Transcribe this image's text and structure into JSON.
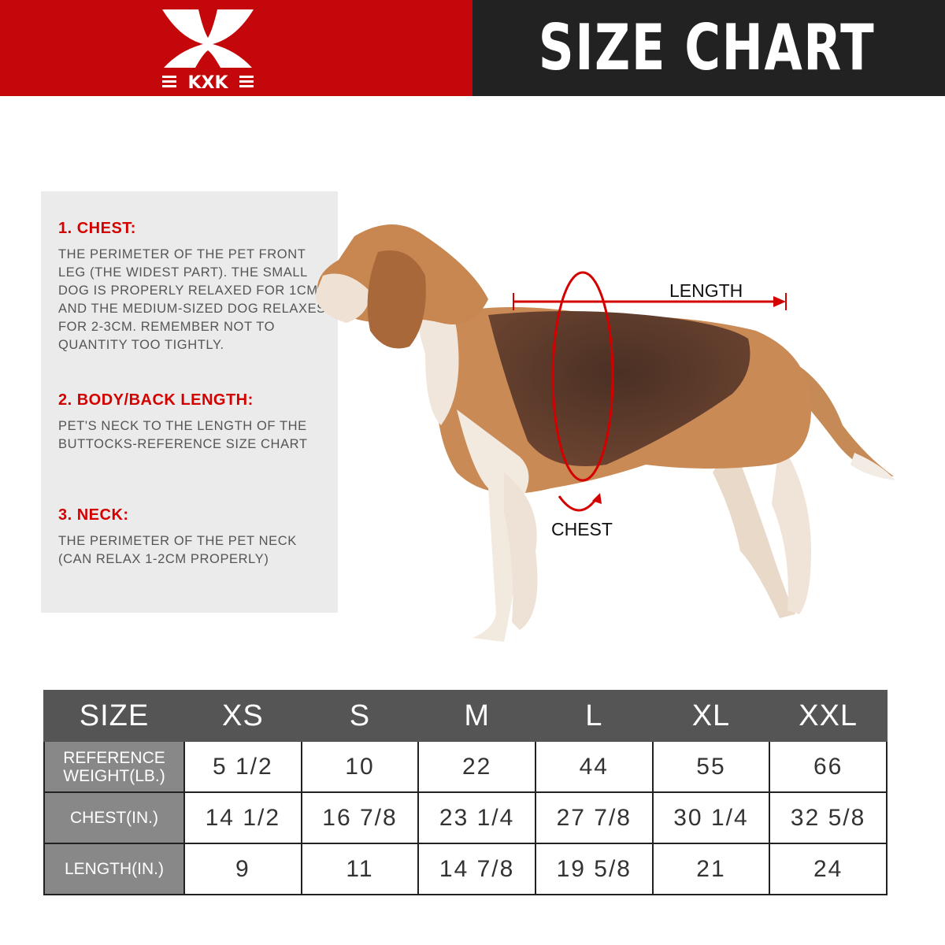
{
  "brand": {
    "logo_text": "KXK",
    "color": "#c4070a"
  },
  "header": {
    "title": "SIZE CHART"
  },
  "guide": [
    {
      "heading": "1. CHEST:",
      "text": "THE PERIMETER OF THE PET FRONT LEG (THE WIDEST PART). THE SMALL DOG IS PROPERLY RELAXED FOR 1CM, AND THE MEDIUM-SIZED DOG RELAXES FOR 2-3CM. REMEMBER NOT TO QUANTITY TOO TIGHTLY."
    },
    {
      "heading": "2. BODY/BACK LENGTH:",
      "text": "PET'S NECK TO THE LENGTH OF THE BUTTOCKS-REFERENCE SIZE CHART"
    },
    {
      "heading": "3. NECK:",
      "text": "THE PERIMETER OF THE PET NECK\n (CAN RELAX 1-2CM PROPERLY)"
    }
  ],
  "diagram": {
    "length_label": "LENGTH",
    "chest_label": "CHEST",
    "accent": "#d40000"
  },
  "table": {
    "header": [
      "SIZE",
      "XS",
      "S",
      "M",
      "L",
      "XL",
      "XXL"
    ],
    "rows": [
      {
        "label": "REFERENCE WEIGHT(LB.)",
        "values": [
          "5 1/2",
          "10",
          "22",
          "44",
          "55",
          "66"
        ]
      },
      {
        "label": "CHEST(IN.)",
        "values": [
          "14 1/2",
          "16 7/8",
          "23 1/4",
          "27 7/8",
          "30 1/4",
          "32 5/8"
        ]
      },
      {
        "label": "LENGTH(IN.)",
        "values": [
          "9",
          "11",
          "14 7/8",
          "19 5/8",
          "21",
          "24"
        ]
      }
    ]
  }
}
